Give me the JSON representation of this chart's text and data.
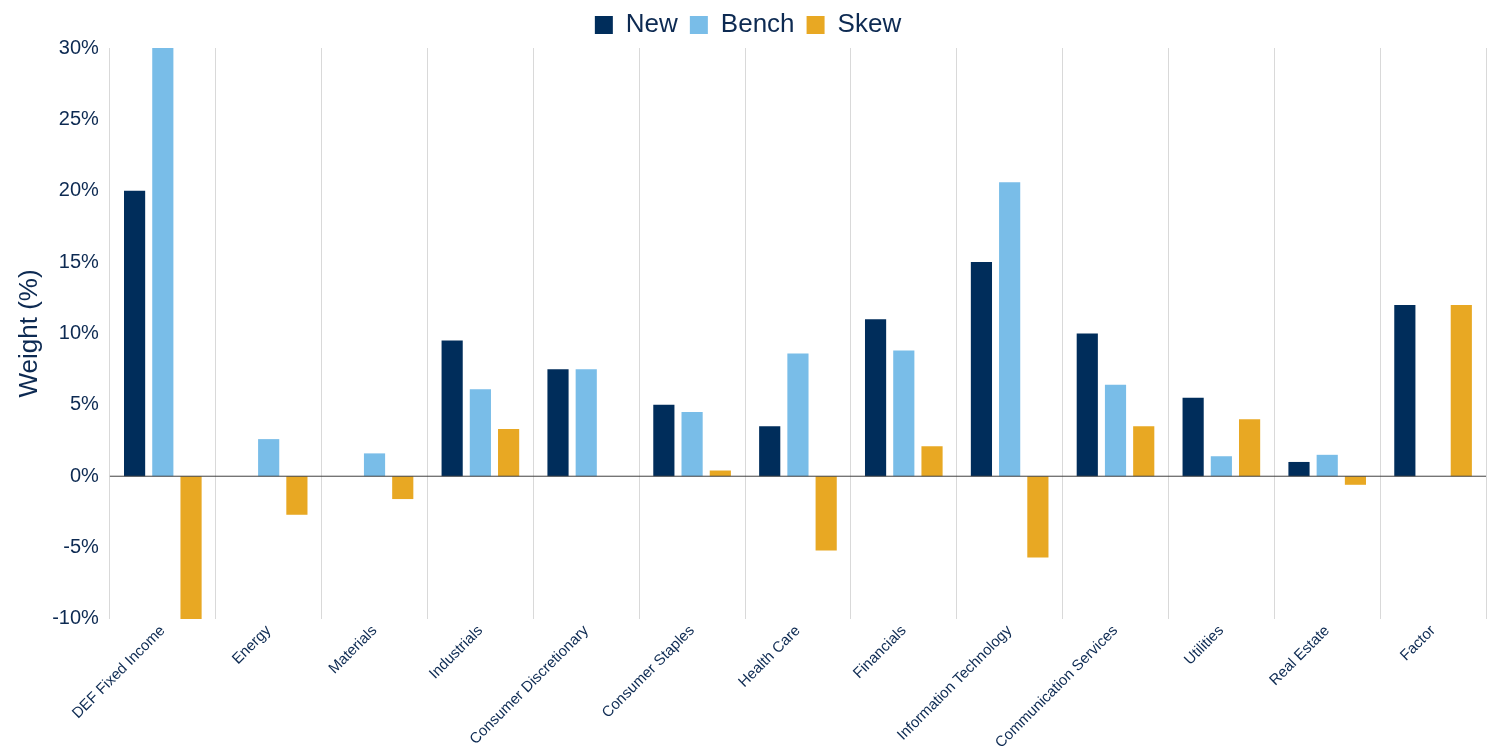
{
  "chart_data": {
    "type": "bar",
    "ylabel": "Weight (%)",
    "categories": [
      "DEF Fixed Income",
      "Energy",
      "Materials",
      "Industrials",
      "Consumer Discretionary",
      "Consumer Staples",
      "Health Care",
      "Financials",
      "Information Technology",
      "Communication Services",
      "Utilities",
      "Real Estate",
      "Factor"
    ],
    "series": [
      {
        "name": "New",
        "color": "#002d5b",
        "values": [
          20,
          0,
          0,
          9.5,
          7.5,
          5,
          3.5,
          11,
          15,
          10,
          5.5,
          1,
          12
        ]
      },
      {
        "name": "Bench",
        "color": "#79bde8",
        "values": [
          30,
          2.6,
          1.6,
          6.1,
          7.5,
          4.5,
          8.6,
          8.8,
          20.6,
          6.4,
          1.4,
          1.5,
          0
        ]
      },
      {
        "name": "Skew",
        "color": "#e8a823",
        "values": [
          -10,
          -2.7,
          -1.6,
          3.3,
          0,
          0.4,
          -5.2,
          2.1,
          -5.7,
          3.5,
          4.0,
          -0.6,
          12
        ]
      }
    ],
    "ylim": [
      -10,
      30
    ],
    "yticks": [
      {
        "value": -10,
        "label": "-10%"
      },
      {
        "value": -5,
        "label": "-5%"
      },
      {
        "value": 0,
        "label": "0%"
      },
      {
        "value": 5,
        "label": "5%"
      },
      {
        "value": 10,
        "label": "10%"
      },
      {
        "value": 15,
        "label": "15%"
      },
      {
        "value": 20,
        "label": "20%"
      },
      {
        "value": 25,
        "label": "25%"
      },
      {
        "value": 30,
        "label": "30%"
      }
    ],
    "grid": "x",
    "legend": "top"
  }
}
